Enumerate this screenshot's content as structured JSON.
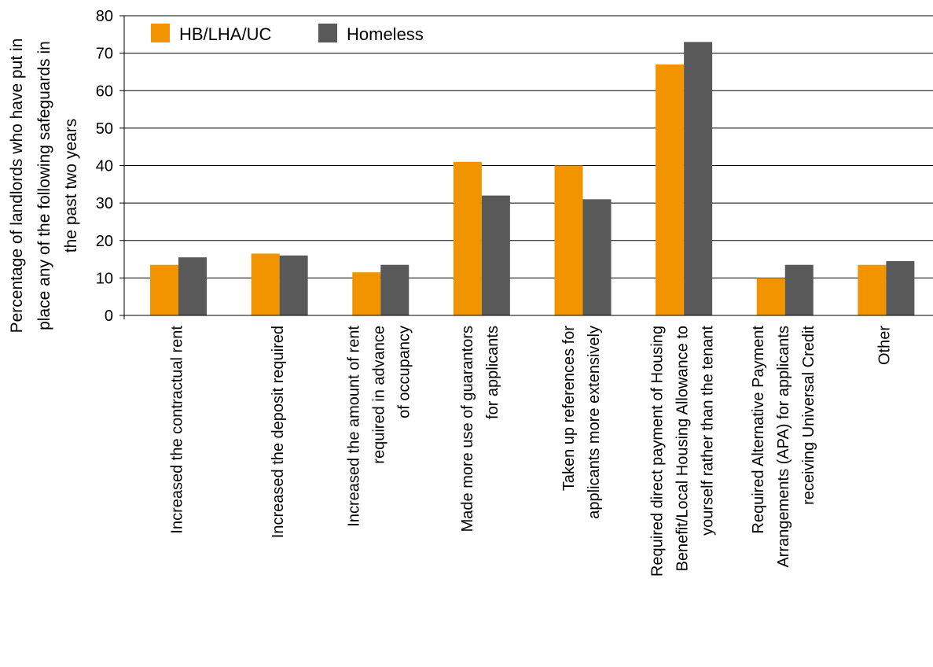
{
  "chart_data": {
    "type": "bar",
    "categories": [
      [
        "Increased the contractual rent"
      ],
      [
        "Increased the deposit required"
      ],
      [
        "Increased the amount of rent",
        "required in advance",
        "of occupancy"
      ],
      [
        "Made more use of guarantors",
        "for applicants"
      ],
      [
        "Taken up references for",
        "applicants more extensively"
      ],
      [
        "Required direct payment of Housing",
        "Benefit/Local Housing Allowance to",
        "yourself rather than the tenant"
      ],
      [
        "Required Alternative Payment",
        "Arrangements (APA) for applicants",
        "receiving Universal Credit"
      ],
      [
        "Other"
      ]
    ],
    "series": [
      {
        "name": "HB/LHA/UC",
        "color": "#f29400",
        "values": [
          13.5,
          16.5,
          11.5,
          41,
          40,
          67,
          10,
          13.5
        ]
      },
      {
        "name": "Homeless",
        "color": "#595959",
        "values": [
          15.5,
          16,
          13.5,
          32,
          31,
          73,
          13.5,
          14.5
        ]
      }
    ],
    "ylabel": [
      "Percentage of landlords who have put in",
      "place any of the following safeguards in",
      "the past two years"
    ],
    "ylim": [
      0,
      80
    ],
    "yticks": [
      0,
      10,
      20,
      30,
      40,
      50,
      60,
      70,
      80
    ],
    "grid": true,
    "legend": "top-left"
  }
}
